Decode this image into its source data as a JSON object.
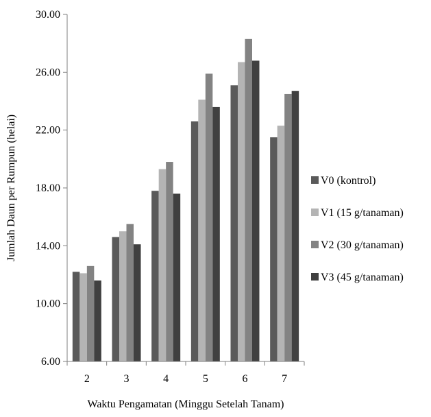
{
  "chart_data": {
    "type": "bar",
    "title": "",
    "xlabel": "Waktu Pengamatan (Minggu Setelah Tanam)",
    "ylabel": "Jumlah Daun per Rumpun (helai)",
    "ylim": [
      6,
      30
    ],
    "yticks": [
      "6.00",
      "10.00",
      "14.00",
      "18.00",
      "22.00",
      "26.00",
      "30.00"
    ],
    "categories": [
      "2",
      "3",
      "4",
      "5",
      "6",
      "7"
    ],
    "grid": false,
    "legend_position": "right",
    "series": [
      {
        "name": "V0 (kontrol)",
        "color": "#5a5a5a",
        "values": [
          12.2,
          14.6,
          17.8,
          22.6,
          25.1,
          21.5
        ]
      },
      {
        "name": "V1 (15 g/tanaman)",
        "color": "#b4b4b4",
        "values": [
          12.1,
          15.0,
          19.3,
          24.1,
          26.7,
          22.3
        ]
      },
      {
        "name": "V2 (30 g/tanaman)",
        "color": "#838383",
        "values": [
          12.6,
          15.5,
          19.8,
          25.9,
          28.3,
          24.5
        ]
      },
      {
        "name": "V3 (45 g/tanaman)",
        "color": "#404040",
        "values": [
          11.6,
          14.1,
          17.6,
          23.6,
          26.8,
          24.7
        ]
      }
    ]
  }
}
